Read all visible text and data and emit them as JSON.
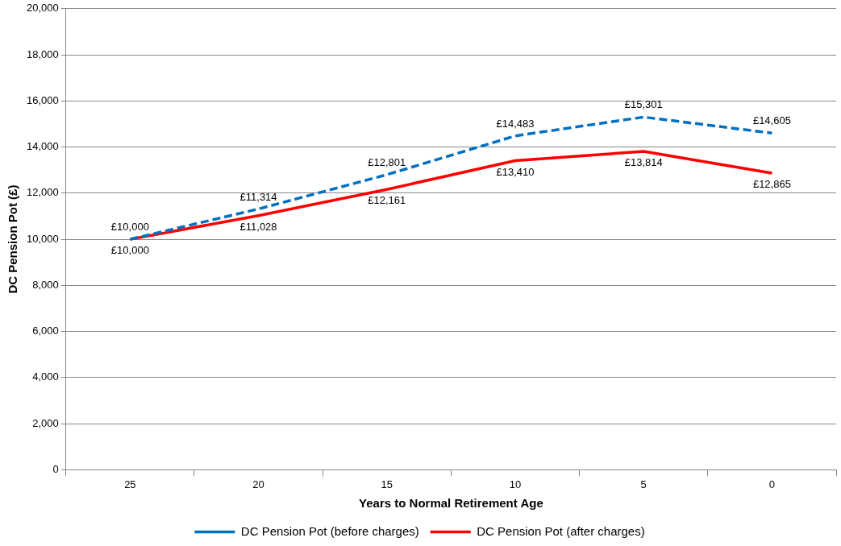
{
  "chart_data": {
    "type": "line",
    "xlabel": "Years to Normal Retirement Age",
    "ylabel": "DC Pension Pot (£)",
    "categories": [
      "25",
      "20",
      "15",
      "10",
      "5",
      "0"
    ],
    "series": [
      {
        "name": "DC Pension Pot (before charges)",
        "color": "#0070c0",
        "line_style": "dashed",
        "values": [
          10000,
          11314,
          12801,
          14483,
          15301,
          14605
        ],
        "value_labels": [
          "£10,000",
          "£11,314",
          "£12,801",
          "£14,483",
          "£15,301",
          "£14,605"
        ]
      },
      {
        "name": "DC Pension Pot (after charges)",
        "color": "#ff0000",
        "line_style": "solid",
        "values": [
          10000,
          11028,
          12161,
          13410,
          13814,
          12865
        ],
        "value_labels": [
          "£10,000",
          "£11,028",
          "£12,161",
          "£13,410",
          "£13,814",
          "£12,865"
        ]
      }
    ],
    "ylim": [
      0,
      20000
    ],
    "yticks": [
      0,
      {
        "value": 2000,
        "label": "2,000"
      },
      {
        "value": 4000,
        "label": "4,000"
      },
      {
        "value": 6000,
        "label": "6,000"
      },
      {
        "value": 8000,
        "label": "8,000"
      },
      {
        "value": 10000,
        "label": "10,000"
      },
      {
        "value": 12000,
        "label": "12,000"
      },
      {
        "value": 14000,
        "label": "14,000"
      },
      {
        "value": 16000,
        "label": "16,000"
      },
      {
        "value": 18000,
        "label": "18,000"
      },
      {
        "value": 20000,
        "label": "20,000"
      }
    ],
    "grid": "y",
    "legend": "bottom",
    "marker": "none"
  }
}
